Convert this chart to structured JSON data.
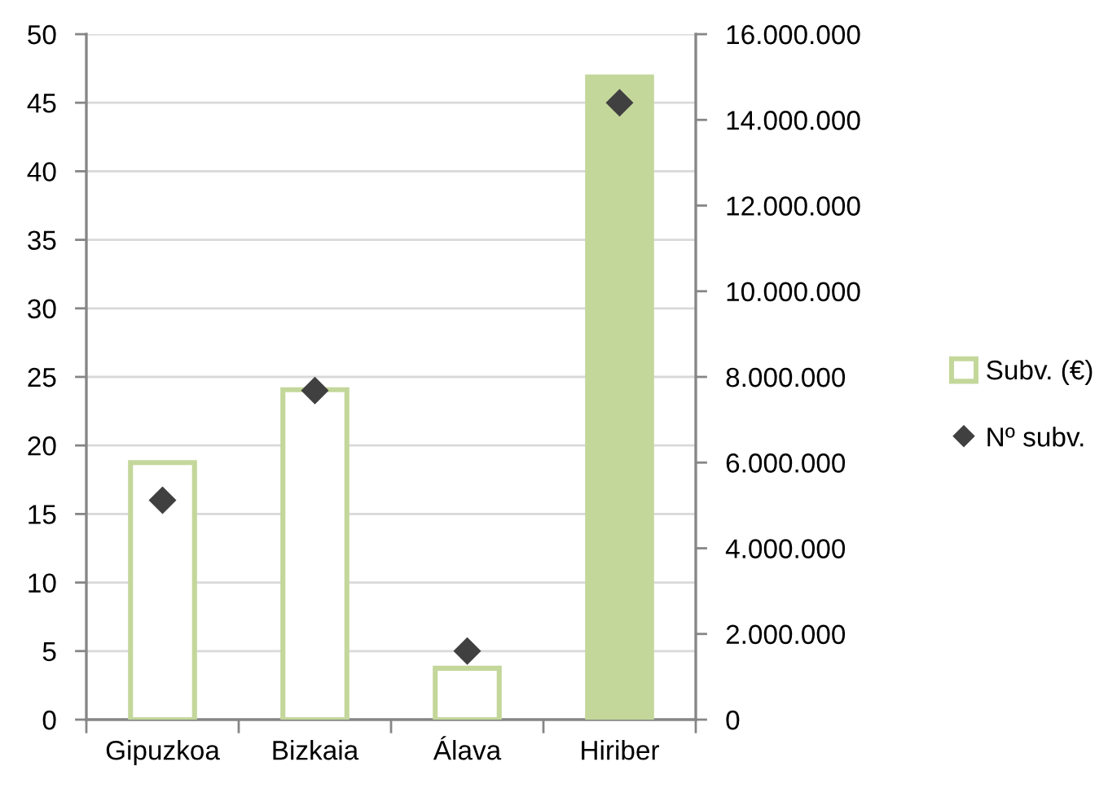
{
  "chart_data": {
    "type": "bar",
    "categories": [
      "Gipuzkoa",
      "Bizkaia",
      "Álava",
      "Hiriber"
    ],
    "series": [
      {
        "name": "Subv. (€)",
        "axis": "y2",
        "color": "#c4d79b",
        "colors": [
          "#ffffff",
          "#ffffff",
          "#ffffff",
          "#c4d79b"
        ],
        "values": [
          6000000,
          7700000,
          1200000,
          15000000
        ]
      },
      {
        "name": "Nº subv.",
        "type": "scatter",
        "axis": "y",
        "color": "#404040",
        "marker": "diamond",
        "values": [
          16,
          24,
          5,
          45
        ]
      }
    ],
    "ylim": [
      0,
      50
    ],
    "yticks": [
      0,
      5,
      10,
      15,
      20,
      25,
      30,
      35,
      40,
      45,
      50
    ],
    "y2lim": [
      0,
      16000000
    ],
    "y2ticks": [
      0,
      {
        "value": 2000000,
        "label": "2.000.000"
      },
      {
        "value": 4000000,
        "label": "4.000.000"
      },
      {
        "value": 6000000,
        "label": "6.000.000"
      },
      {
        "value": 8000000,
        "label": "8.000.000"
      },
      {
        "value": 10000000,
        "label": "10.000.000"
      },
      {
        "value": 12000000,
        "label": "12.000.000"
      },
      {
        "value": 14000000,
        "label": "14.000.000"
      },
      {
        "value": 16000000,
        "label": "16.000.000"
      }
    ],
    "grid": "y",
    "legend": "right"
  }
}
